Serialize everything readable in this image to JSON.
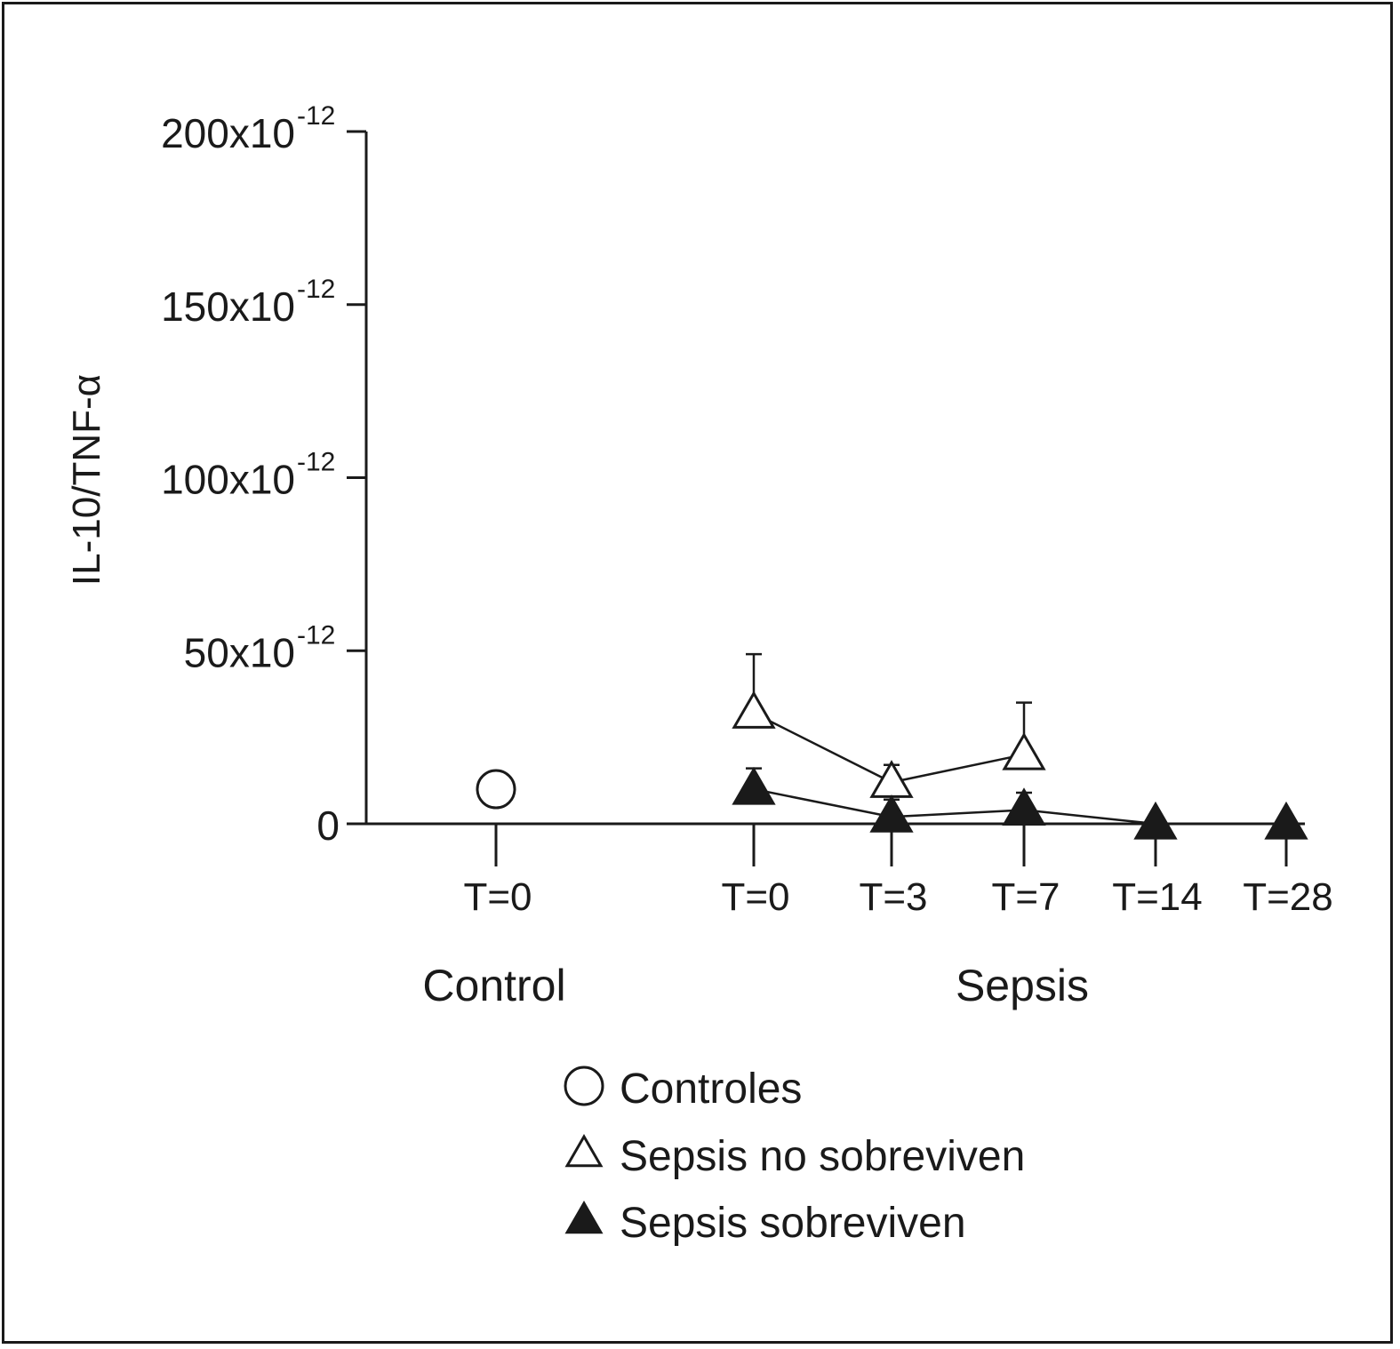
{
  "chart_data": {
    "type": "line",
    "ylabel": "IL-10/TNF-α",
    "ylim": [
      0,
      200
    ],
    "y_unit_exponent": "-12",
    "y_ticks": [
      {
        "value": 0,
        "base": "0",
        "exp": ""
      },
      {
        "value": 50,
        "base": "50x10",
        "exp": "-12"
      },
      {
        "value": 100,
        "base": "100x10",
        "exp": "-12"
      },
      {
        "value": 150,
        "base": "150x10",
        "exp": "-12"
      },
      {
        "value": 200,
        "base": "200x10",
        "exp": "-12"
      }
    ],
    "groups": [
      {
        "label": "Control",
        "timepoints": [
          "T=0"
        ]
      },
      {
        "label": "Sepsis",
        "timepoints": [
          "T=0",
          "T=3",
          "T=7",
          "T=14",
          "T=28"
        ]
      }
    ],
    "series": [
      {
        "name": "Controles",
        "marker": "circle-open",
        "group": "Control",
        "points": [
          {
            "x": "T=0",
            "y": 10,
            "err": null
          }
        ]
      },
      {
        "name": "Sepsis no sobreviven",
        "marker": "triangle-open",
        "group": "Sepsis",
        "points": [
          {
            "x": "T=0",
            "y": 32,
            "err": 17
          },
          {
            "x": "T=3",
            "y": 12,
            "err": 5
          },
          {
            "x": "T=7",
            "y": 20,
            "err": 15
          }
        ]
      },
      {
        "name": "Sepsis sobreviven",
        "marker": "triangle-filled",
        "group": "Sepsis",
        "points": [
          {
            "x": "T=0",
            "y": 10,
            "err": 6
          },
          {
            "x": "T=3",
            "y": 2,
            "err": 5
          },
          {
            "x": "T=7",
            "y": 4,
            "err": 5
          },
          {
            "x": "T=14",
            "y": 0,
            "err": null
          },
          {
            "x": "T=28",
            "y": 0,
            "err": null
          }
        ]
      }
    ],
    "legend_position": "bottom-right",
    "grid": false
  },
  "colors": {
    "ink": "#1a1a1a",
    "background": "#ffffff"
  }
}
